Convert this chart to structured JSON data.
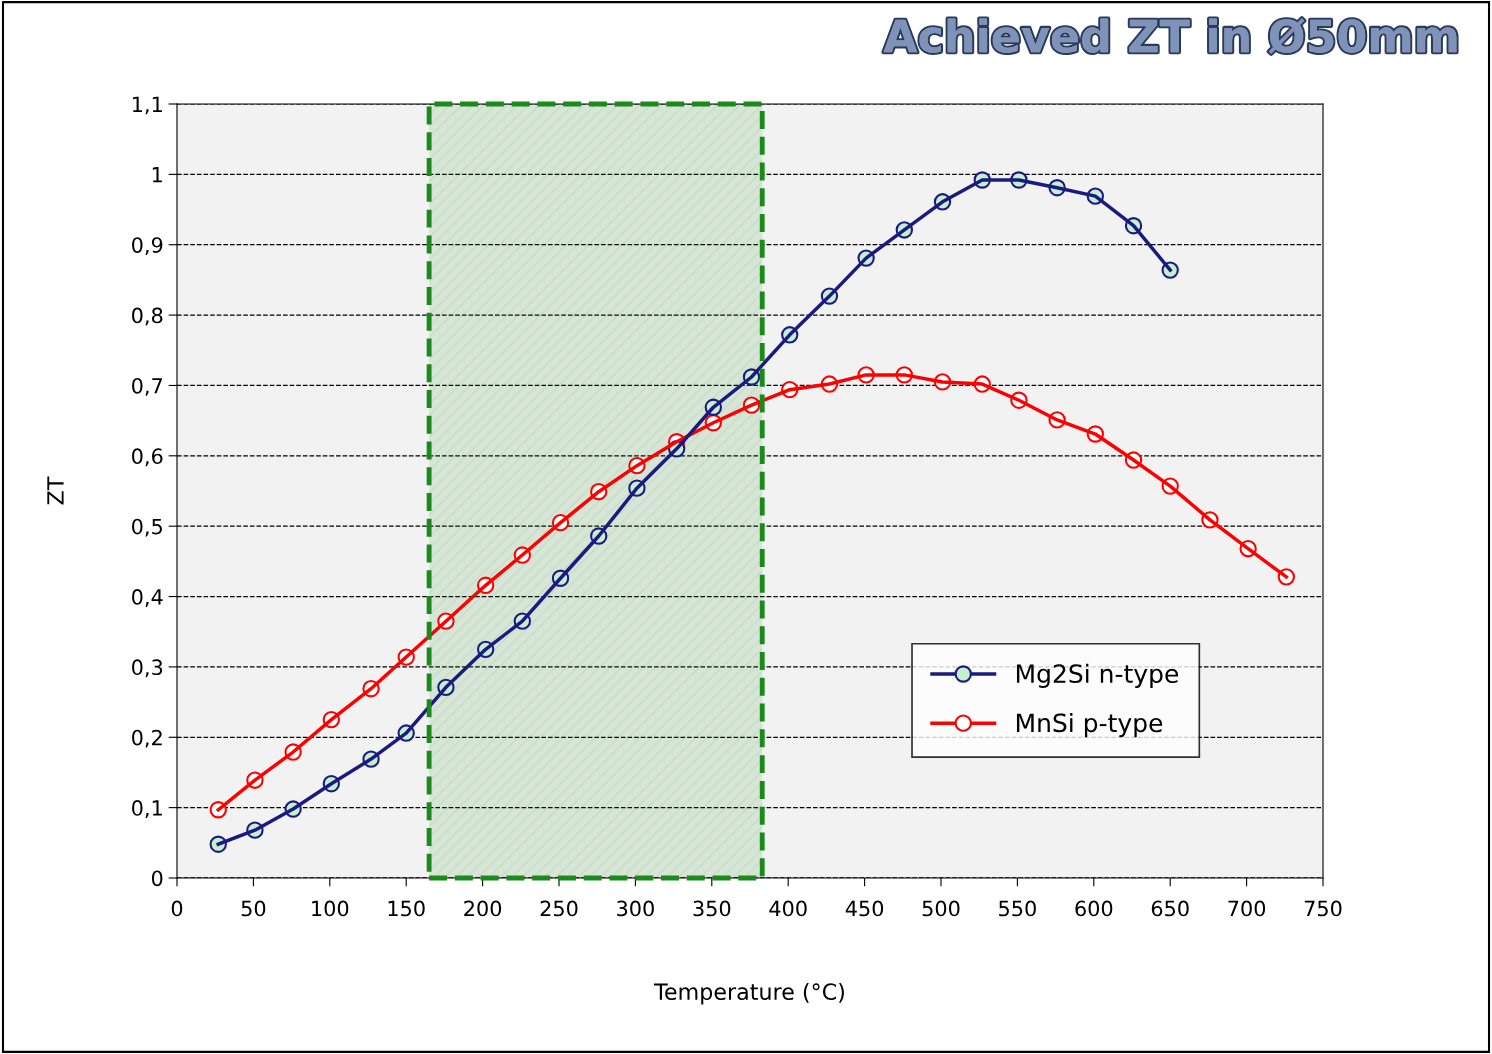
{
  "chart_data": {
    "type": "line",
    "title": "Achieved ZT in Ø50mm",
    "xlabel": "Temperature (°C)",
    "ylabel": "ZT",
    "xlim": [
      0,
      750
    ],
    "xticks": [
      0,
      50,
      100,
      150,
      200,
      250,
      300,
      350,
      400,
      450,
      500,
      550,
      600,
      650,
      700,
      750
    ],
    "ylim": [
      0,
      1.1
    ],
    "yticks": [
      0,
      {
        "value": 0.1,
        "label": "0,1"
      },
      {
        "value": 0.2,
        "label": "0,2"
      },
      {
        "value": 0.3,
        "label": "0,3"
      },
      {
        "value": 0.4,
        "label": "0,4"
      },
      {
        "value": 0.5,
        "label": "0,5"
      },
      {
        "value": 0.6,
        "label": "0,6"
      },
      {
        "value": 0.7,
        "label": "0,7"
      },
      {
        "value": 0.8,
        "label": "0,8"
      },
      {
        "value": 0.9,
        "label": "0,9"
      },
      1,
      {
        "value": 1.1,
        "label": "1,1"
      }
    ],
    "grid": "y",
    "legend": "lower right",
    "marker": "circle",
    "line_style": "solid",
    "bands": [
      {
        "axis": "x",
        "from": 165,
        "to": 383,
        "color": "#1a8a1a"
      }
    ],
    "series": [
      {
        "name": "Mg2Si n-type",
        "color": "#1a1a80",
        "x": [
          27,
          51,
          76,
          101,
          127,
          150,
          176,
          202,
          226,
          251,
          276,
          301,
          327,
          351,
          376,
          401,
          427,
          451,
          476,
          501,
          527,
          551,
          576,
          601,
          626,
          650
        ],
        "values": [
          0.048,
          0.068,
          0.098,
          0.134,
          0.169,
          0.206,
          0.271,
          0.325,
          0.365,
          0.426,
          0.486,
          0.554,
          0.61,
          0.669,
          0.712,
          0.772,
          0.827,
          0.881,
          0.921,
          0.961,
          0.992,
          0.992,
          0.981,
          0.969,
          0.927,
          0.864
        ]
      },
      {
        "name": "MnSi p-type",
        "color": "#ff0000",
        "x": [
          27,
          51,
          76,
          101,
          127,
          150,
          176,
          202,
          226,
          251,
          276,
          301,
          327,
          351,
          376,
          401,
          427,
          451,
          476,
          501,
          527,
          551,
          576,
          601,
          626,
          650,
          676,
          701,
          726
        ],
        "values": [
          0.097,
          0.139,
          0.179,
          0.225,
          0.269,
          0.314,
          0.365,
          0.416,
          0.459,
          0.505,
          0.549,
          0.586,
          0.62,
          0.647,
          0.672,
          0.694,
          0.702,
          0.715,
          0.715,
          0.705,
          0.702,
          0.679,
          0.651,
          0.631,
          0.594,
          0.557,
          0.509,
          0.468,
          0.428
        ]
      }
    ]
  }
}
